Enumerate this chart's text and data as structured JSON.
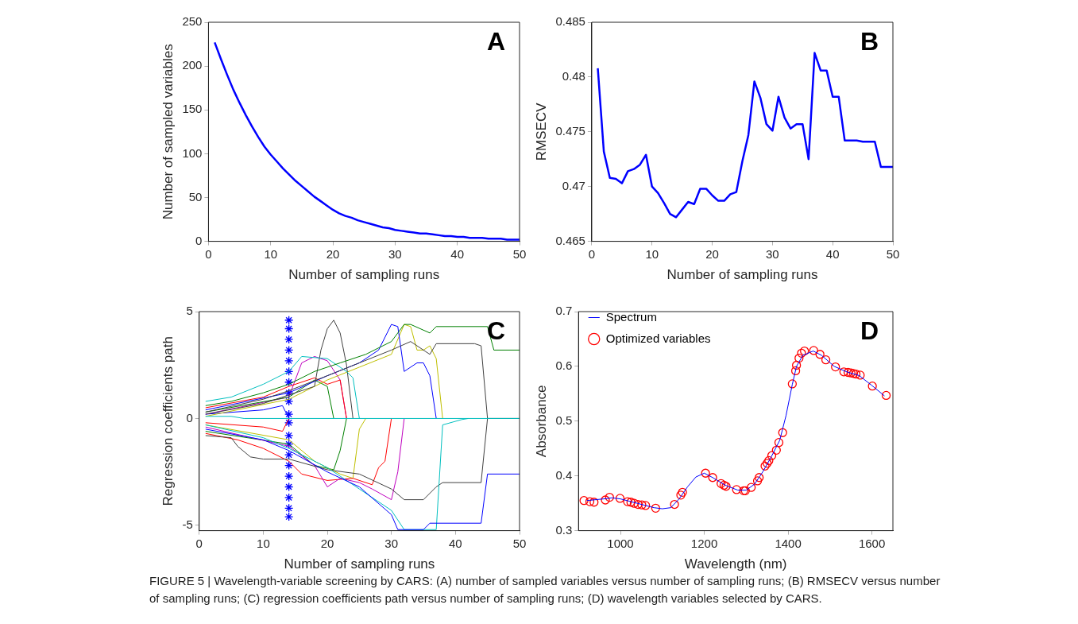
{
  "chart_data": [
    {
      "type": "line",
      "xlabel": "Number of sampling runs",
      "ylabel": "Number of sampled variables",
      "annotations": [
        "A"
      ],
      "xlim": [
        0,
        50
      ],
      "xticks": [
        0,
        10,
        20,
        30,
        40,
        50
      ],
      "ylim": [
        0,
        250
      ],
      "yticks": [
        0,
        50,
        100,
        150,
        200,
        250
      ],
      "grid": false,
      "legend": false,
      "x": [
        1,
        2,
        3,
        4,
        5,
        6,
        7,
        8,
        9,
        10,
        11,
        12,
        13,
        14,
        15,
        16,
        17,
        18,
        19,
        20,
        21,
        22,
        23,
        24,
        25,
        26,
        27,
        28,
        29,
        30,
        31,
        32,
        33,
        34,
        35,
        36,
        37,
        38,
        39,
        40,
        41,
        42,
        43,
        44,
        45,
        46,
        47,
        48,
        49,
        50
      ],
      "series": [
        {
          "color": "#0000ff",
          "marker": "none",
          "values": [
            227,
            208,
            190,
            173,
            158,
            144,
            131,
            119,
            108,
            99,
            91,
            83,
            76,
            69,
            63,
            57,
            51,
            46,
            41,
            36,
            32,
            29,
            27,
            24,
            22,
            20,
            18,
            16,
            15,
            13,
            12,
            11,
            10,
            9,
            9,
            8,
            7,
            6,
            6,
            5,
            5,
            4,
            4,
            4,
            3,
            3,
            3,
            2,
            2,
            2
          ]
        }
      ]
    },
    {
      "type": "line",
      "xlabel": "Number of sampling runs",
      "ylabel": "RMSECV",
      "annotations": [
        "B"
      ],
      "xlim": [
        0,
        50
      ],
      "xticks": [
        0,
        10,
        20,
        30,
        40,
        50
      ],
      "ylim": [
        0.465,
        0.485
      ],
      "yticks": [
        0.465,
        0.47,
        0.475,
        0.48,
        0.485
      ],
      "grid": false,
      "legend": false,
      "x": [
        1,
        2,
        3,
        4,
        5,
        6,
        7,
        8,
        9,
        10,
        11,
        12,
        13,
        14,
        15,
        16,
        17,
        18,
        19,
        20,
        21,
        22,
        23,
        24,
        25,
        26,
        27,
        28,
        29,
        30,
        31,
        32,
        33,
        34,
        35,
        36,
        37,
        38,
        39,
        40,
        41,
        42,
        43,
        44,
        45,
        46,
        47,
        48,
        49,
        50
      ],
      "series": [
        {
          "color": "#0000ff",
          "marker": "none",
          "values": [
            0.4808,
            0.4732,
            0.4708,
            0.4707,
            0.4703,
            0.4714,
            0.4716,
            0.472,
            0.4729,
            0.47,
            0.4694,
            0.4685,
            0.4675,
            0.4672,
            0.4679,
            0.4686,
            0.4684,
            0.4698,
            0.4698,
            0.4692,
            0.4687,
            0.4687,
            0.4693,
            0.4695,
            0.4723,
            0.4747,
            0.4796,
            0.4781,
            0.4757,
            0.4751,
            0.4782,
            0.4763,
            0.4753,
            0.4757,
            0.4757,
            0.4725,
            0.4822,
            0.4806,
            0.4806,
            0.4782,
            0.4782,
            0.4742,
            0.4742,
            0.4742,
            0.4741,
            0.4741,
            0.4741,
            0.4718,
            0.4718,
            0.4718
          ]
        }
      ]
    },
    {
      "type": "line",
      "xlabel": "Number of sampling runs",
      "ylabel": "Regression coefficients path",
      "annotations": [
        "C"
      ],
      "xlim": [
        0,
        50
      ],
      "xticks": [
        0,
        10,
        20,
        30,
        40,
        50
      ],
      "ylim": [
        -5.25,
        5
      ],
      "yticks": [
        -5,
        0,
        5
      ],
      "grid": false,
      "legend": false,
      "series": [
        {
          "color": "#00bfbf",
          "marker": "none",
          "x": [
            1,
            5,
            7,
            50
          ],
          "values": [
            0.1,
            0.1,
            0,
            0
          ]
        },
        {
          "color": "#008000",
          "marker": "none",
          "x": [
            1,
            5,
            10,
            14,
            18,
            22,
            26,
            30,
            32,
            33,
            36,
            37,
            45,
            46,
            50
          ],
          "values": [
            0.6,
            0.8,
            1.2,
            1.6,
            2.2,
            2.6,
            3.0,
            3.6,
            4.4,
            4.4,
            4.0,
            4.3,
            4.3,
            3.2,
            3.2
          ]
        },
        {
          "color": "#404040",
          "marker": "none",
          "x": [
            1,
            10,
            14,
            20,
            25,
            30,
            33,
            36,
            37,
            43,
            44,
            45,
            50
          ],
          "values": [
            0.3,
            0.9,
            1.3,
            2.0,
            2.6,
            3.2,
            3.6,
            3.0,
            3.5,
            3.5,
            3.4,
            0,
            0
          ]
        },
        {
          "color": "#0000ff",
          "marker": "none",
          "x": [
            1,
            10,
            14,
            20,
            25,
            30,
            31,
            35,
            36,
            44,
            45,
            50
          ],
          "values": [
            -0.5,
            -1.0,
            -1.5,
            -2.5,
            -3.2,
            -4.5,
            -5.2,
            -5.2,
            -4.9,
            -4.9,
            -2.6,
            -2.6
          ]
        },
        {
          "color": "#00bfbf",
          "marker": "none",
          "x": [
            1,
            5,
            10,
            14,
            16,
            20,
            23,
            24,
            25
          ],
          "values": [
            0.8,
            1.0,
            1.6,
            2.2,
            2.9,
            2.8,
            2.2,
            1.9,
            0
          ]
        },
        {
          "color": "#00bfbf",
          "marker": "none",
          "x": [
            1,
            10,
            14,
            20,
            25,
            30,
            32,
            37,
            38,
            41,
            42
          ],
          "values": [
            -0.3,
            -0.9,
            -1.4,
            -2.3,
            -3.3,
            -4.3,
            -5.2,
            -5.2,
            -0.3,
            -0.05,
            0
          ]
        },
        {
          "color": "#404040",
          "marker": "none",
          "x": [
            1,
            10,
            14,
            18,
            19,
            20,
            21,
            22,
            23,
            24
          ],
          "values": [
            0.2,
            0.7,
            1.1,
            1.5,
            3.2,
            4.2,
            4.6,
            4.0,
            2.5,
            0
          ]
        },
        {
          "color": "#0000ff",
          "marker": "none",
          "x": [
            1,
            14,
            20,
            25,
            28,
            30,
            31,
            32,
            34,
            35,
            36,
            37
          ],
          "values": [
            0.4,
            1.2,
            2.0,
            2.6,
            3.2,
            4.4,
            4.3,
            2.2,
            2.6,
            2.6,
            2.0,
            0
          ]
        },
        {
          "color": "#bfbf00",
          "marker": "none",
          "x": [
            1,
            14,
            20,
            25,
            30,
            32,
            33,
            34,
            35,
            36,
            37,
            38
          ],
          "values": [
            0.1,
            0.9,
            1.8,
            2.4,
            3.0,
            4.4,
            4.3,
            3.2,
            3.2,
            3.4,
            2.8,
            0
          ]
        },
        {
          "color": "#404040",
          "marker": "none",
          "x": [
            1,
            5,
            6,
            8,
            10,
            14,
            20,
            25,
            30,
            32,
            35,
            37,
            38,
            44,
            45,
            50
          ],
          "values": [
            -0.8,
            -0.9,
            -1.3,
            -1.8,
            -1.9,
            -1.9,
            -2.4,
            -2.6,
            -3.3,
            -3.8,
            -3.8,
            -3.2,
            -3.0,
            -3.0,
            0,
            0
          ]
        },
        {
          "color": "#bf00bf",
          "marker": "none",
          "x": [
            1,
            14,
            18,
            20,
            22,
            25,
            27,
            30,
            31,
            32
          ],
          "values": [
            -0.4,
            -1.3,
            -2.2,
            -3.2,
            -2.8,
            -3.0,
            -3.3,
            -3.8,
            -2.5,
            0
          ]
        },
        {
          "color": "#ff0000",
          "marker": "none",
          "x": [
            1,
            6,
            10,
            14,
            16,
            20,
            24,
            27,
            28,
            29,
            30
          ],
          "values": [
            -0.7,
            -1.0,
            -1.4,
            -2.0,
            -2.6,
            -2.9,
            -2.8,
            -3.1,
            -2.3,
            -2.0,
            0
          ]
        },
        {
          "color": "#ff0000",
          "marker": "none",
          "x": [
            1,
            10,
            14,
            18,
            20,
            22,
            23
          ],
          "values": [
            0.5,
            1.0,
            1.5,
            1.9,
            1.6,
            1.8,
            0
          ]
        },
        {
          "color": "#008000",
          "marker": "none",
          "x": [
            1,
            14,
            18,
            20,
            21
          ],
          "values": [
            0.3,
            1.0,
            1.8,
            1.5,
            0
          ]
        },
        {
          "color": "#bf00bf",
          "marker": "none",
          "x": [
            1,
            14,
            16,
            18,
            20,
            22,
            23
          ],
          "values": [
            0.2,
            1.0,
            2.6,
            2.9,
            2.7,
            1.8,
            0
          ]
        },
        {
          "color": "#bfbf00",
          "marker": "none",
          "x": [
            1,
            14,
            18,
            22,
            24,
            25,
            26
          ],
          "values": [
            -0.3,
            -1.0,
            -2.0,
            -2.6,
            -2.8,
            -0.5,
            0
          ]
        },
        {
          "color": "#0000ff",
          "marker": "none",
          "x": [
            1,
            10,
            13,
            14
          ],
          "values": [
            0.2,
            0.4,
            0.6,
            0
          ]
        },
        {
          "color": "#ff0000",
          "marker": "none",
          "x": [
            1,
            10,
            13,
            14
          ],
          "values": [
            -0.2,
            -0.4,
            -0.6,
            0
          ]
        },
        {
          "color": "#008000",
          "marker": "none",
          "x": [
            1,
            14,
            18,
            21,
            22,
            23
          ],
          "values": [
            -0.6,
            -1.2,
            -2.2,
            -2.4,
            -1.5,
            0
          ]
        },
        {
          "type": "scatter",
          "color": "#0000ff",
          "marker": "cross",
          "x": [
            14,
            14,
            14,
            14,
            14,
            14,
            14,
            14,
            14,
            14,
            14,
            14,
            14,
            14,
            14,
            14,
            14,
            14,
            14,
            14
          ],
          "values": [
            4.6,
            4.2,
            3.7,
            3.2,
            2.7,
            2.2,
            1.7,
            1.2,
            0.8,
            0.2,
            -0.2,
            -0.8,
            -1.2,
            -1.7,
            -2.2,
            -2.7,
            -3.2,
            -3.7,
            -4.2,
            -4.6
          ]
        }
      ]
    },
    {
      "type": "line",
      "xlabel": "Wavelength (nm)",
      "ylabel": "Absorbance",
      "annotations": [
        "D",
        "FIGURE 5 | Wavelength-variable screening by CARS: (A) number of sampled variables versus number of sampling runs; (B) RMSECV versus number of sampling runs; (C) regression coefficients path versus number of sampling runs; (D) wavelength variables selected by CARS."
      ],
      "xlim": [
        900,
        1650
      ],
      "xticks": [
        1000,
        1200,
        1400,
        1600
      ],
      "ylim": [
        0.3,
        0.7
      ],
      "yticks": [
        0.3,
        0.4,
        0.5,
        0.6,
        0.7
      ],
      "grid": false,
      "legend": "top left",
      "series": [
        {
          "name": "Spectrum",
          "color": "#0000ff",
          "marker": "none",
          "x": [
            920,
            960,
            980,
            1000,
            1040,
            1080,
            1100,
            1120,
            1140,
            1160,
            1180,
            1200,
            1220,
            1250,
            1280,
            1300,
            1320,
            1340,
            1360,
            1380,
            1395,
            1410,
            1420,
            1435,
            1460,
            1480,
            1510,
            1540,
            1570,
            1600,
            1630
          ],
          "values": [
            0.355,
            0.358,
            0.36,
            0.358,
            0.35,
            0.342,
            0.34,
            0.342,
            0.358,
            0.38,
            0.398,
            0.405,
            0.397,
            0.383,
            0.374,
            0.374,
            0.385,
            0.408,
            0.435,
            0.465,
            0.51,
            0.567,
            0.6,
            0.62,
            0.628,
            0.62,
            0.6,
            0.59,
            0.583,
            0.565,
            0.546
          ]
        },
        {
          "name": "Optimized variables",
          "type": "scatter",
          "color": "#ff0000",
          "marker": "circle",
          "x": [
            913,
            927,
            937,
            964,
            974,
            999,
            1017,
            1025,
            1033,
            1042,
            1051,
            1060,
            1084,
            1129,
            1144,
            1148,
            1203,
            1220,
            1240,
            1247,
            1252,
            1277,
            1294,
            1298,
            1312,
            1327,
            1331,
            1345,
            1350,
            1354,
            1361,
            1372,
            1378,
            1387,
            1410,
            1418,
            1420,
            1426,
            1432,
            1439,
            1461,
            1476,
            1490,
            1513,
            1533,
            1543,
            1550,
            1556,
            1562,
            1572,
            1601,
            1634
          ],
          "values": [
            0.355,
            0.353,
            0.352,
            0.356,
            0.361,
            0.359,
            0.353,
            0.352,
            0.35,
            0.348,
            0.347,
            0.346,
            0.341,
            0.348,
            0.365,
            0.37,
            0.405,
            0.397,
            0.386,
            0.383,
            0.381,
            0.375,
            0.373,
            0.373,
            0.379,
            0.391,
            0.397,
            0.418,
            0.423,
            0.428,
            0.437,
            0.447,
            0.461,
            0.479,
            0.568,
            0.592,
            0.602,
            0.615,
            0.624,
            0.628,
            0.629,
            0.622,
            0.612,
            0.599,
            0.59,
            0.589,
            0.588,
            0.587,
            0.586,
            0.584,
            0.564,
            0.547
          ]
        }
      ]
    }
  ]
}
